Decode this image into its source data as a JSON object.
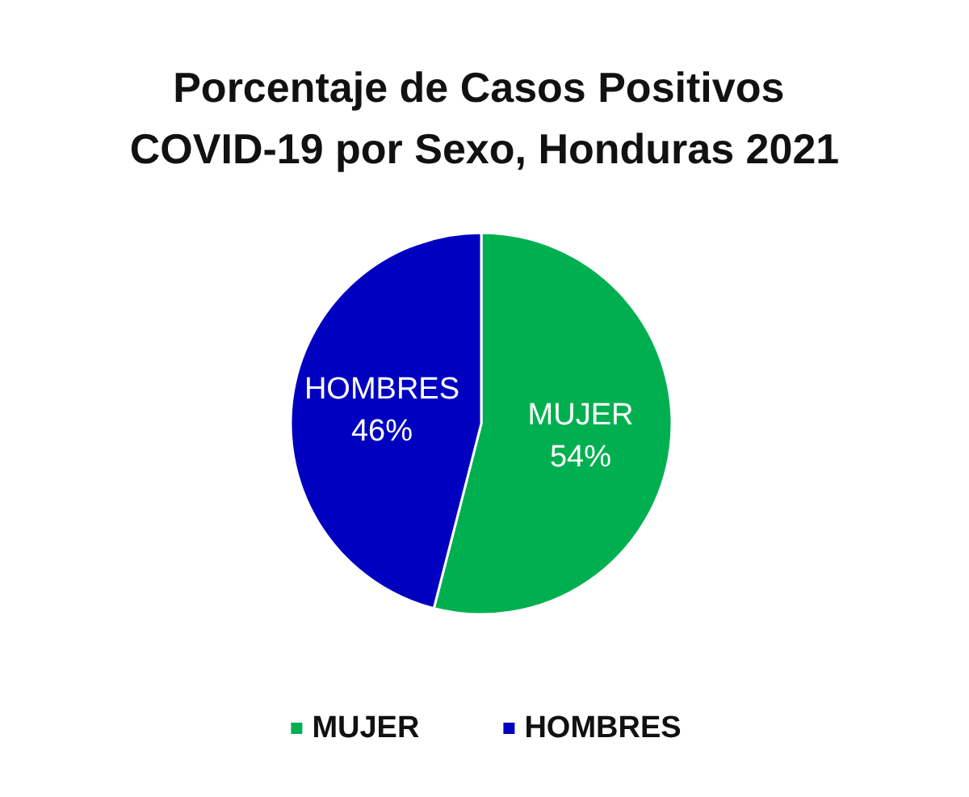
{
  "chart_data": {
    "type": "pie",
    "title": "Porcentaje de Casos Positivos COVID-19 por Sexo, Honduras 2021",
    "categories": [
      "MUJER",
      "HOMBRES"
    ],
    "values": [
      54,
      46
    ],
    "colors": [
      "#00b050",
      "#0000c0"
    ],
    "value_labels": [
      "54%",
      "46%"
    ],
    "legend": "bottom"
  }
}
